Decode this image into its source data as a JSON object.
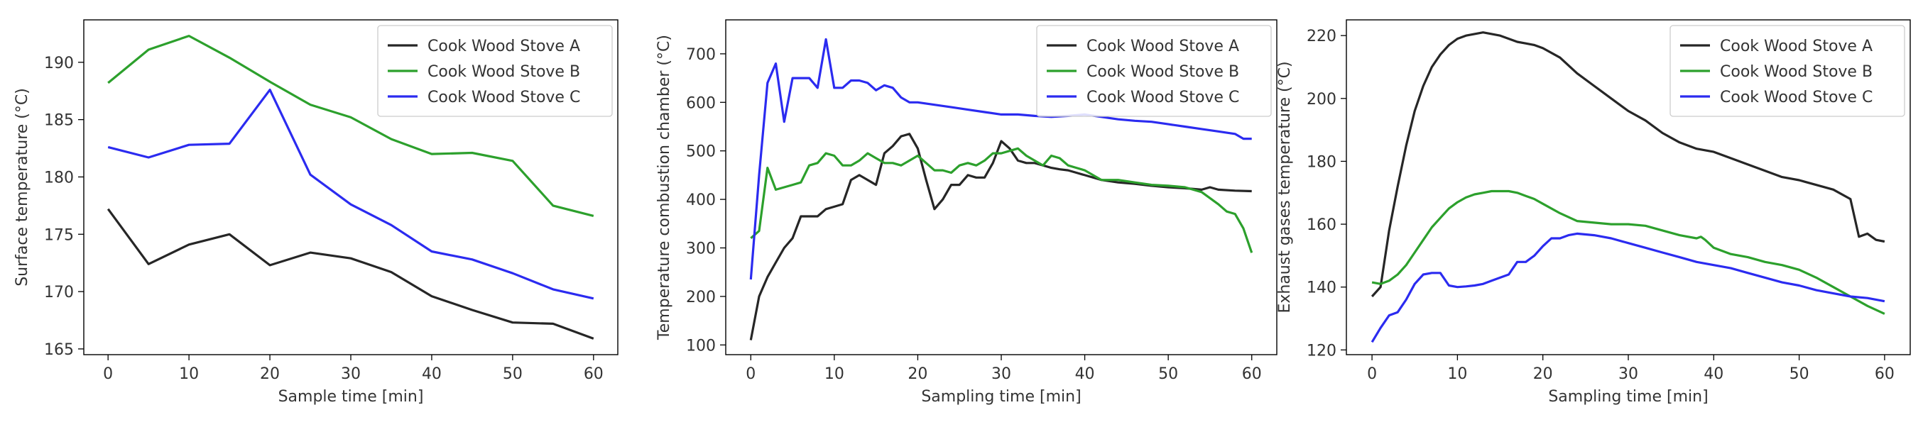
{
  "colors": {
    "stove_a": "#262626",
    "stove_b": "#2ca02c",
    "stove_c": "#2b2bf0"
  },
  "chart_data": [
    {
      "type": "line",
      "xlabel": "Sample time [min]",
      "ylabel": "Surface temperature  (°C)",
      "xlim": [
        -3,
        63
      ],
      "ylim": [
        164.5,
        193.7
      ],
      "xticks": [
        0,
        10,
        20,
        30,
        40,
        50,
        60
      ],
      "yticks": [
        165,
        170,
        175,
        180,
        185,
        190
      ],
      "legend": "top-right",
      "series": [
        {
          "name": "Cook Wood Stove A",
          "color_key": "stove_a",
          "x": [
            0,
            5,
            10,
            15,
            20,
            25,
            30,
            35,
            40,
            45,
            50,
            55,
            60
          ],
          "y": [
            177.2,
            172.4,
            174.1,
            175.0,
            172.3,
            173.4,
            172.9,
            171.7,
            169.6,
            168.4,
            167.3,
            167.2,
            165.9
          ]
        },
        {
          "name": "Cook Wood Stove B",
          "color_key": "stove_b",
          "x": [
            0,
            5,
            10,
            15,
            20,
            25,
            30,
            35,
            40,
            45,
            50,
            55,
            60
          ],
          "y": [
            188.2,
            191.1,
            192.3,
            190.4,
            188.3,
            186.3,
            185.2,
            183.3,
            182.0,
            182.1,
            181.4,
            177.5,
            176.6
          ]
        },
        {
          "name": "Cook Wood Stove C",
          "color_key": "stove_c",
          "x": [
            0,
            5,
            10,
            15,
            20,
            25,
            30,
            35,
            40,
            45,
            50,
            55,
            60
          ],
          "y": [
            182.6,
            181.7,
            182.8,
            182.9,
            187.6,
            180.2,
            177.6,
            175.8,
            173.5,
            172.8,
            171.6,
            170.2,
            169.4
          ]
        }
      ]
    },
    {
      "type": "line",
      "xlabel": "Sampling time [min]",
      "ylabel": "Temperature combustion chamber (°C)",
      "xlim": [
        -3,
        63
      ],
      "ylim": [
        80,
        770
      ],
      "xticks": [
        0,
        10,
        20,
        30,
        40,
        50,
        60
      ],
      "yticks": [
        100,
        200,
        300,
        400,
        500,
        600,
        700
      ],
      "legend": "top-right",
      "series": [
        {
          "name": "Cook Wood Stove A",
          "color_key": "stove_a",
          "x": [
            0,
            1,
            2,
            3,
            4,
            5,
            6,
            7,
            8,
            9,
            10,
            11,
            12,
            13,
            14,
            15,
            16,
            17,
            18,
            19,
            20,
            21,
            22,
            23,
            24,
            25,
            26,
            27,
            28,
            29,
            30,
            31,
            32,
            33,
            34,
            35,
            36,
            37,
            38,
            39,
            40,
            42,
            44,
            46,
            48,
            50,
            52,
            54,
            55,
            56,
            58,
            60
          ],
          "y": [
            110,
            200,
            240,
            270,
            300,
            320,
            365,
            365,
            365,
            380,
            385,
            390,
            440,
            450,
            440,
            430,
            495,
            510,
            530,
            535,
            505,
            440,
            380,
            400,
            430,
            430,
            450,
            445,
            445,
            475,
            520,
            505,
            480,
            475,
            475,
            470,
            465,
            462,
            460,
            455,
            450,
            440,
            435,
            432,
            428,
            425,
            423,
            420,
            425,
            420,
            418,
            417
          ]
        },
        {
          "name": "Cook Wood Stove B",
          "color_key": "stove_b",
          "x": [
            0,
            1,
            2,
            3,
            4,
            5,
            6,
            7,
            8,
            9,
            10,
            11,
            12,
            13,
            14,
            15,
            16,
            17,
            18,
            19,
            20,
            21,
            22,
            23,
            24,
            25,
            26,
            27,
            28,
            29,
            30,
            31,
            32,
            33,
            34,
            35,
            36,
            37,
            38,
            39,
            40,
            42,
            44,
            46,
            48,
            50,
            52,
            54,
            56,
            57,
            58,
            59,
            60
          ],
          "y": [
            320,
            335,
            465,
            420,
            425,
            430,
            435,
            470,
            475,
            495,
            490,
            470,
            470,
            480,
            495,
            485,
            475,
            475,
            470,
            480,
            490,
            475,
            460,
            460,
            455,
            470,
            475,
            470,
            480,
            495,
            495,
            500,
            505,
            490,
            480,
            470,
            490,
            485,
            470,
            465,
            460,
            440,
            440,
            435,
            430,
            428,
            425,
            415,
            390,
            375,
            370,
            340,
            290
          ]
        },
        {
          "name": "Cook Wood Stove C",
          "color_key": "stove_c",
          "x": [
            0,
            1,
            2,
            3,
            4,
            5,
            6,
            7,
            8,
            9,
            10,
            11,
            12,
            13,
            14,
            15,
            16,
            17,
            18,
            19,
            20,
            22,
            24,
            26,
            28,
            30,
            32,
            34,
            36,
            38,
            40,
            42,
            44,
            46,
            48,
            50,
            52,
            54,
            56,
            58,
            59,
            60
          ],
          "y": [
            235,
            450,
            640,
            680,
            560,
            650,
            650,
            650,
            630,
            730,
            630,
            630,
            645,
            645,
            640,
            625,
            635,
            630,
            610,
            600,
            600,
            595,
            590,
            585,
            580,
            575,
            575,
            572,
            570,
            572,
            575,
            570,
            565,
            562,
            560,
            555,
            550,
            545,
            540,
            535,
            525,
            525
          ]
        }
      ]
    },
    {
      "type": "line",
      "xlabel": "Sampling time [min]",
      "ylabel": "Exhaust gases temperature (°C)",
      "xlim": [
        -3,
        63
      ],
      "ylim": [
        118.5,
        225
      ],
      "xticks": [
        0,
        10,
        20,
        30,
        40,
        50,
        60
      ],
      "yticks": [
        120,
        140,
        160,
        180,
        200,
        220
      ],
      "legend": "top-right",
      "series": [
        {
          "name": "Cook Wood Stove A",
          "color_key": "stove_a",
          "x": [
            0,
            1,
            2,
            3,
            4,
            5,
            6,
            7,
            8,
            9,
            10,
            11,
            12,
            13,
            14,
            15,
            16,
            17,
            18,
            19,
            20,
            22,
            24,
            26,
            28,
            30,
            32,
            34,
            36,
            38,
            40,
            42,
            44,
            46,
            48,
            50,
            52,
            54,
            56,
            57,
            58,
            59,
            60
          ],
          "y": [
            137,
            140,
            158,
            172,
            185,
            196,
            204,
            210,
            214,
            217,
            219,
            220,
            220.5,
            221,
            220.5,
            220,
            219,
            218,
            217.5,
            217,
            216,
            213,
            208,
            204,
            200,
            196,
            193,
            189,
            186,
            184,
            183,
            181,
            179,
            177,
            175,
            174,
            172.5,
            171,
            168,
            156,
            157,
            155,
            154.5
          ]
        },
        {
          "name": "Cook Wood Stove B",
          "color_key": "stove_b",
          "x": [
            0,
            1,
            2,
            3,
            4,
            5,
            6,
            7,
            8,
            9,
            10,
            11,
            12,
            13,
            14,
            15,
            16,
            17,
            18,
            19,
            20,
            22,
            24,
            26,
            28,
            30,
            32,
            34,
            36,
            38,
            38.5,
            39,
            40,
            42,
            44,
            46,
            48,
            50,
            52,
            54,
            56,
            58,
            60
          ],
          "y": [
            141.5,
            141,
            142,
            144,
            147,
            151,
            155,
            159,
            162,
            165,
            167,
            168.5,
            169.5,
            170,
            170.5,
            170.5,
            170.5,
            170,
            169,
            168,
            166.5,
            163.5,
            161,
            160.5,
            160,
            160,
            159.5,
            158,
            156.5,
            155.5,
            156,
            155,
            152.5,
            150.5,
            149.5,
            148,
            147,
            145.5,
            143,
            140,
            137,
            134,
            131.5
          ]
        },
        {
          "name": "Cook Wood Stove C",
          "color_key": "stove_c",
          "x": [
            0,
            1,
            2,
            3,
            4,
            5,
            6,
            7,
            8,
            9,
            10,
            11,
            12,
            13,
            14,
            15,
            16,
            17,
            18,
            19,
            20,
            21,
            22,
            23,
            24,
            26,
            28,
            30,
            32,
            34,
            36,
            38,
            40,
            42,
            44,
            46,
            48,
            50,
            52,
            54,
            56,
            58,
            60
          ],
          "y": [
            122.5,
            127,
            131,
            132,
            136,
            141,
            144,
            144.5,
            144.5,
            140.5,
            140,
            140.2,
            140.5,
            141,
            142,
            143,
            144,
            148,
            148,
            150,
            153,
            155.5,
            155.5,
            156.5,
            157,
            156.5,
            155.5,
            154,
            152.5,
            151,
            149.5,
            148,
            147,
            146,
            144.5,
            143,
            141.5,
            140.5,
            139,
            138,
            137,
            136.5,
            135.5
          ]
        }
      ]
    }
  ]
}
